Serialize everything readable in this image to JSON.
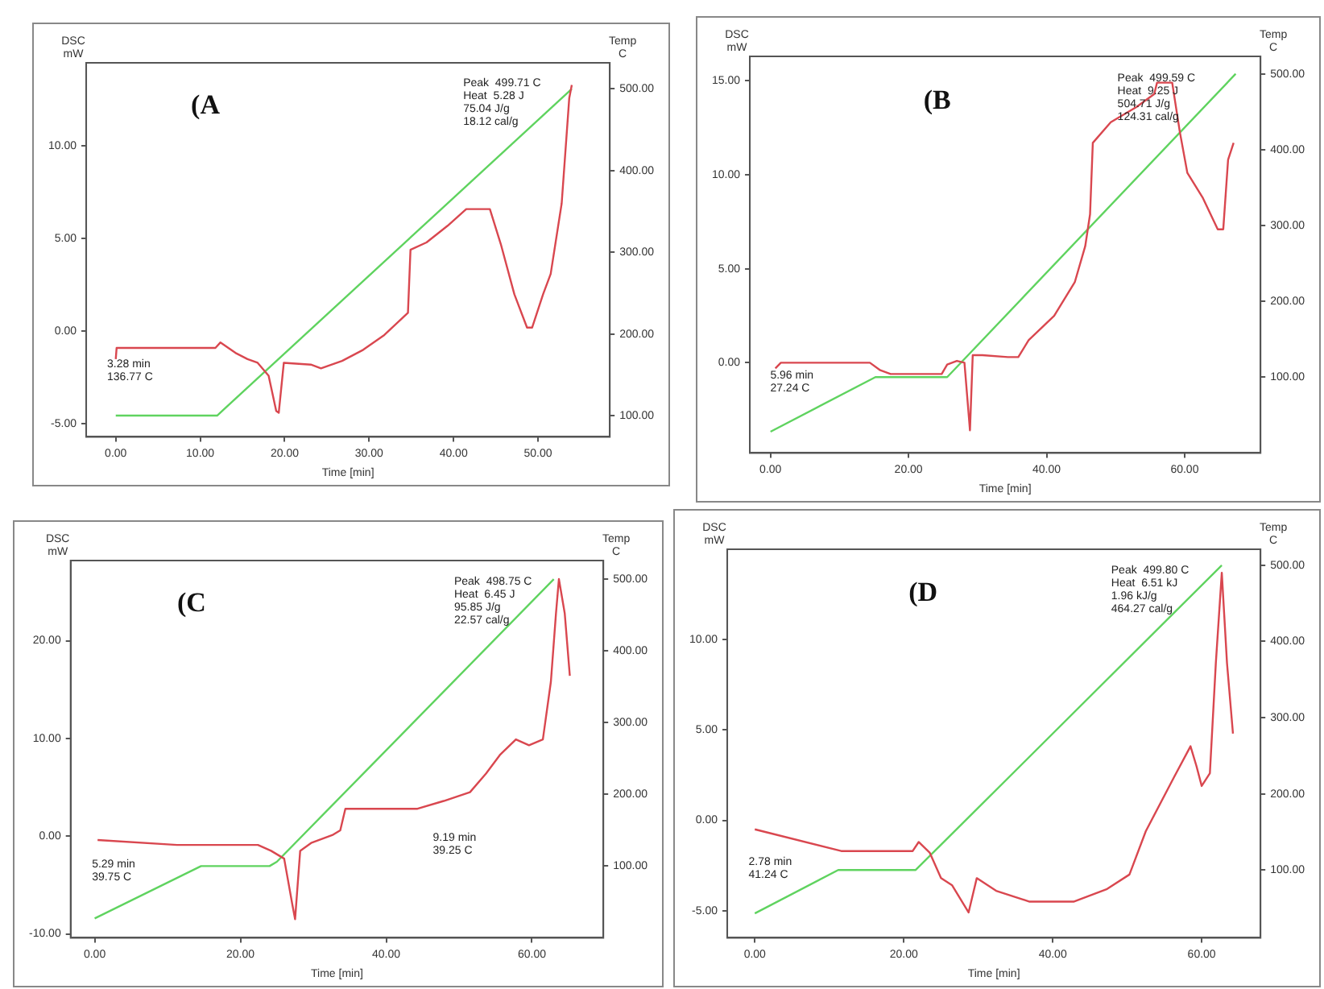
{
  "chart_data": [
    {
      "type": "line",
      "title": "(A",
      "xlabel": "Time [min]",
      "ylabel": "DSC\nmW",
      "y2label": "Temp\nC",
      "annotations": [
        "Peak  499.71 C\nHeat  5.28 J\n75.04 J/g\n18.12 cal/g",
        "3.28 min\n136.77 C"
      ],
      "xlim": [
        -3.5,
        58.5
      ],
      "xticks": [
        {
          "value": 0,
          "label": "0.00"
        },
        {
          "value": 10,
          "label": "10.00"
        },
        {
          "value": 20,
          "label": "20.00"
        },
        {
          "value": 30,
          "label": "30.00"
        },
        {
          "value": 40,
          "label": "40.00"
        },
        {
          "value": 50,
          "label": "50.00"
        }
      ],
      "ylim": [
        -5.7,
        14.5
      ],
      "yticks": [
        {
          "value": -5,
          "label": "-5.00"
        },
        {
          "value": 0,
          "label": "0.00"
        },
        {
          "value": 5,
          "label": "5.00"
        },
        {
          "value": 10,
          "label": "10.00"
        }
      ],
      "y2lim": [
        74,
        532
      ],
      "y2ticks": [
        {
          "value": 100,
          "label": "100.00"
        },
        {
          "value": 200,
          "label": "200.00"
        },
        {
          "value": 300,
          "label": "300.00"
        },
        {
          "value": 400,
          "label": "400.00"
        },
        {
          "value": 500,
          "label": "500.00"
        }
      ],
      "grid": false,
      "legend": false,
      "series": [
        {
          "color": "#d9474f",
          "axis": "y",
          "x": [
            0,
            0.1,
            11.8,
            12.4,
            14.3,
            15.6,
            16.8,
            18.1,
            19.0,
            19.3,
            19.9,
            23.1,
            24.3,
            26.8,
            29.3,
            31.8,
            34.6,
            34.9,
            36.8,
            39.3,
            41.5,
            44.3,
            45.6,
            47.2,
            48.7,
            49.3,
            50.6,
            51.5,
            52.8,
            53.7,
            54.0
          ],
          "values": [
            -1.5,
            -0.9,
            -0.9,
            -0.6,
            -1.2,
            -1.5,
            -1.7,
            -2.4,
            -4.3,
            -4.4,
            -1.7,
            -1.8,
            -2.0,
            -1.6,
            -1.0,
            -0.2,
            1.0,
            4.4,
            4.8,
            5.7,
            6.6,
            6.6,
            4.7,
            2.0,
            0.2,
            0.2,
            2.0,
            3.1,
            6.9,
            12.6,
            13.3
          ]
        },
        {
          "color": "#5fd35f",
          "axis": "y2",
          "x": [
            0,
            12,
            54
          ],
          "values": [
            100,
            100,
            500
          ]
        }
      ]
    },
    {
      "type": "line",
      "title": "(B",
      "xlabel": "Time [min]",
      "ylabel": "DSC\nmW",
      "y2label": "Temp\nC",
      "annotations": [
        "Peak  499.59 C\nHeat  9.25 J\n504.71 J/g\n124.31 cal/g",
        "5.96 min\n27.24 C"
      ],
      "xlim": [
        -3,
        71
      ],
      "xticks": [
        {
          "value": 0,
          "label": "0.00"
        },
        {
          "value": 20,
          "label": "20.00"
        },
        {
          "value": 40,
          "label": "40.00"
        },
        {
          "value": 60,
          "label": "60.00"
        }
      ],
      "ylim": [
        -4.8,
        16.3
      ],
      "yticks": [
        {
          "value": 0,
          "label": "0.00"
        },
        {
          "value": 5,
          "label": "5.00"
        },
        {
          "value": 10,
          "label": "10.00"
        },
        {
          "value": 15,
          "label": "15.00"
        }
      ],
      "y2lim": [
        0,
        523
      ],
      "y2ticks": [
        {
          "value": 100,
          "label": "100.00"
        },
        {
          "value": 200,
          "label": "200.00"
        },
        {
          "value": 300,
          "label": "300.00"
        },
        {
          "value": 400,
          "label": "400.00"
        },
        {
          "value": 500,
          "label": "500.00"
        }
      ],
      "grid": false,
      "legend": false,
      "series": [
        {
          "color": "#d9474f",
          "axis": "y",
          "x": [
            0.7,
            1.5,
            14.4,
            15.9,
            17.4,
            24.8,
            25.6,
            27.0,
            28.1,
            28.9,
            29.3,
            30.7,
            34.4,
            35.9,
            37.4,
            41.1,
            44.1,
            45.6,
            46.3,
            46.7,
            49.3,
            53.0,
            55.6,
            56.0,
            58.2,
            59.3,
            60.4,
            62.6,
            64.8,
            65.6,
            66.3,
            67.1
          ],
          "values": [
            -0.3,
            0,
            0,
            -0.4,
            -0.6,
            -0.6,
            -0.1,
            0.1,
            0,
            -3.6,
            0.4,
            0.4,
            0.3,
            0.3,
            1.2,
            2.5,
            4.3,
            6.2,
            7.9,
            11.7,
            12.8,
            13.6,
            14.3,
            14.9,
            14.9,
            12.3,
            10.1,
            8.8,
            7.1,
            7.1,
            10.8,
            11.7
          ]
        },
        {
          "color": "#5fd35f",
          "axis": "y2",
          "x": [
            0,
            15.2,
            25.6,
            67.4
          ],
          "values": [
            28,
            100,
            100,
            500
          ]
        }
      ]
    },
    {
      "type": "line",
      "title": "(C",
      "xlabel": "Time [min]",
      "ylabel": "DSC\nmW",
      "y2label": "Temp\nC",
      "annotations": [
        "Peak  498.75 C\nHeat  6.45 J\n95.85 J/g\n22.57 cal/g",
        "5.29 min\n39.75 C",
        "9.19 min\n39.25 C"
      ],
      "xlim": [
        -3.3,
        69.8
      ],
      "xticks": [
        {
          "value": 0,
          "label": "0.00"
        },
        {
          "value": 20,
          "label": "20.00"
        },
        {
          "value": 40,
          "label": "40.00"
        },
        {
          "value": 60,
          "label": "60.00"
        }
      ],
      "ylim": [
        -10.4,
        28.2
      ],
      "yticks": [
        {
          "value": -10,
          "label": "-10.00"
        },
        {
          "value": 0,
          "label": "0.00"
        },
        {
          "value": 10,
          "label": "10.00"
        },
        {
          "value": 20,
          "label": "20.00"
        }
      ],
      "y2lim": [
        0,
        526
      ],
      "y2ticks": [
        {
          "value": 100,
          "label": "100.00"
        },
        {
          "value": 200,
          "label": "200.00"
        },
        {
          "value": 300,
          "label": "300.00"
        },
        {
          "value": 400,
          "label": "400.00"
        },
        {
          "value": 500,
          "label": "500.00"
        }
      ],
      "grid": false,
      "legend": false,
      "series": [
        {
          "color": "#d9474f",
          "axis": "y",
          "x": [
            0.4,
            11.3,
            22.4,
            24.2,
            26.0,
            27.1,
            27.5,
            28.2,
            29.7,
            32.6,
            33.7,
            34.4,
            37.0,
            44.3,
            47.9,
            51.5,
            53.7,
            55.6,
            57.8,
            59.6,
            61.5,
            62.6,
            63.3,
            63.7,
            64.5,
            65.2
          ],
          "values": [
            -0.4,
            -0.9,
            -0.9,
            -1.5,
            -2.3,
            -6.9,
            -8.5,
            -1.5,
            -0.7,
            0.1,
            0.6,
            2.8,
            2.8,
            2.8,
            3.6,
            4.5,
            6.4,
            8.3,
            9.9,
            9.3,
            9.9,
            15.8,
            22.8,
            26.3,
            22.8,
            16.4
          ]
        },
        {
          "color": "#5fd35f",
          "axis": "y2",
          "x": [
            0,
            14.6,
            24.0,
            25.0,
            63.0
          ],
          "values": [
            27,
            100,
            100,
            106,
            500
          ]
        }
      ]
    },
    {
      "type": "line",
      "title": "(D",
      "xlabel": "Time [min]",
      "ylabel": "DSC\nmW",
      "y2label": "Temp\nC",
      "annotations": [
        "Peak  499.80 C\nHeat  6.51 kJ\n1.96 kJ/g\n464.27 cal/g",
        "2.78 min\n41.24 C"
      ],
      "xlim": [
        -3.7,
        67.9
      ],
      "xticks": [
        {
          "value": 0,
          "label": "0.00"
        },
        {
          "value": 20,
          "label": "20.00"
        },
        {
          "value": 40,
          "label": "40.00"
        },
        {
          "value": 60,
          "label": "60.00"
        }
      ],
      "ylim": [
        -6.5,
        15
      ],
      "yticks": [
        {
          "value": -5,
          "label": "-5.00"
        },
        {
          "value": 0,
          "label": "0.00"
        },
        {
          "value": 5,
          "label": "5.00"
        },
        {
          "value": 10,
          "label": "10.00"
        }
      ],
      "y2lim": [
        11,
        521
      ],
      "y2ticks": [
        {
          "value": 100,
          "label": "100.00"
        },
        {
          "value": 200,
          "label": "200.00"
        },
        {
          "value": 300,
          "label": "300.00"
        },
        {
          "value": 400,
          "label": "400.00"
        },
        {
          "value": 500,
          "label": "500.00"
        }
      ],
      "grid": false,
      "legend": false,
      "series": [
        {
          "color": "#d9474f",
          "axis": "y",
          "x": [
            0,
            11.6,
            21.2,
            22.0,
            23.5,
            25.0,
            26.5,
            28.7,
            29.8,
            32.4,
            36.9,
            42.8,
            47.3,
            50.3,
            52.5,
            56.3,
            58.5,
            59.3,
            60.0,
            61.1,
            61.9,
            62.7,
            63.4,
            64.2
          ],
          "values": [
            -0.5,
            -1.7,
            -1.7,
            -1.2,
            -1.8,
            -3.2,
            -3.6,
            -5.1,
            -3.2,
            -3.9,
            -4.5,
            -4.5,
            -3.8,
            -3.0,
            -0.6,
            2.4,
            4.1,
            3.0,
            1.9,
            2.6,
            8.7,
            13.7,
            8.7,
            4.8
          ]
        },
        {
          "color": "#5fd35f",
          "axis": "y2",
          "x": [
            0,
            11.2,
            21.6,
            62.7
          ],
          "values": [
            43,
            100,
            100,
            500
          ]
        }
      ]
    }
  ]
}
